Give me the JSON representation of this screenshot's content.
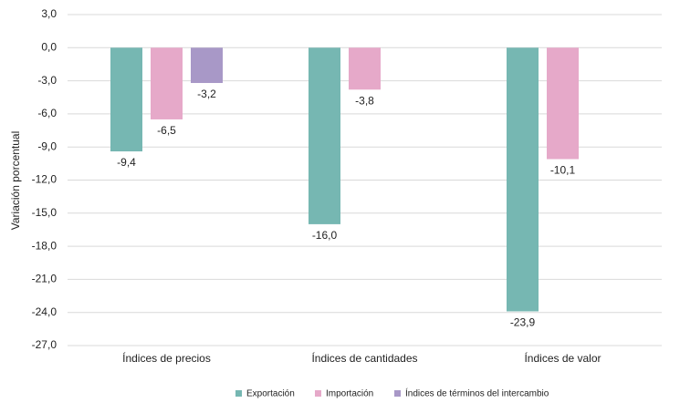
{
  "chart_data": {
    "type": "bar",
    "y_label": "Variación porcentual",
    "categories": [
      "Índices de precios",
      "Índices de cantidades",
      "Índices de valor"
    ],
    "series": [
      {
        "name": "Exportación",
        "color": "#76b7b2",
        "values": [
          -9.4,
          -16.0,
          -23.9
        ],
        "value_labels": [
          "-9,4",
          "-16,0",
          "-23,9"
        ]
      },
      {
        "name": "Importación",
        "color": "#e6a9c9",
        "values": [
          -6.5,
          -3.8,
          -10.1
        ],
        "value_labels": [
          "-6,5",
          "-3,8",
          "-10,1"
        ]
      },
      {
        "name": "Índices de términos del intercambio",
        "color": "#a898c7",
        "values": [
          -3.2,
          null,
          null
        ],
        "value_labels": [
          "-3,2",
          null,
          null
        ]
      }
    ],
    "ylim": [
      -27,
      3
    ],
    "yticks": [
      {
        "value": 3,
        "label": "3,0"
      },
      {
        "value": 0,
        "label": "0,0"
      },
      {
        "value": -3,
        "label": "-3,0"
      },
      {
        "value": -6,
        "label": "-6,0"
      },
      {
        "value": -9,
        "label": "-9,0"
      },
      {
        "value": -12,
        "label": "-12,0"
      },
      {
        "value": -15,
        "label": "-15,0"
      },
      {
        "value": -18,
        "label": "-18,0"
      },
      {
        "value": -21,
        "label": "-21,0"
      },
      {
        "value": -24,
        "label": "-24,0"
      },
      {
        "value": -27,
        "label": "-27,0"
      }
    ],
    "grid": true,
    "legend": "bottom"
  }
}
